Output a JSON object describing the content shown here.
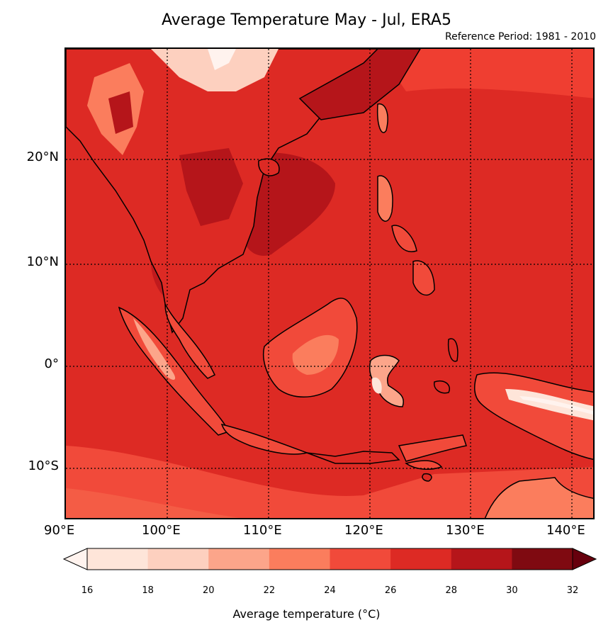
{
  "title": "Average Temperature May - Jul, ERA5",
  "subtitle": "Reference Period: 1981 - 2010",
  "lon_ticks": [
    "90°E",
    "100°E",
    "110°E",
    "120°E",
    "130°E",
    "140°E"
  ],
  "lat_ticks": [
    "20°N",
    "10°N",
    "0°",
    "10°S"
  ],
  "colorbar": {
    "title": "Average temperature (°C)",
    "ticks": [
      "16",
      "18",
      "20",
      "22",
      "24",
      "26",
      "28",
      "30",
      "32"
    ],
    "colors": [
      "#fee5d9",
      "#fdd0bf",
      "#fca58a",
      "#fb7d5d",
      "#f14a3a",
      "#dd2a24",
      "#b5151a",
      "#7f0a11"
    ],
    "under_color": "#fff3ee",
    "over_color": "#67000d"
  },
  "map": {
    "ocean_color": "#dd2a24",
    "extent": {
      "lon_min": 90,
      "lon_max": 142.5,
      "lat_min": -15,
      "lat_max": 30
    },
    "gridline_lons": [
      100,
      110,
      120,
      130,
      140
    ],
    "gridline_lats": [
      20,
      10,
      0,
      -10
    ]
  }
}
